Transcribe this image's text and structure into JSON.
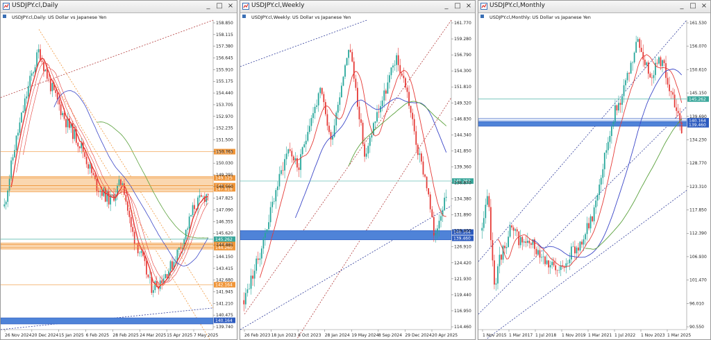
{
  "colors": {
    "up": "#26a69a",
    "down": "#e53935",
    "ma_red": "#e53935",
    "ma_blue": "#3b47c8",
    "ma_green": "#5aa13c",
    "zone_orange": "#fad7b0",
    "zone_orange_line": "#f0963a",
    "zone_blue": "#4f83d8",
    "trend_red": "#b23a3a",
    "trend_blue": "#2d3a9a",
    "price_line": "#4cb5a8"
  },
  "windows": [
    {
      "id": "daily",
      "title": "USDJPY.cl,Daily",
      "header": "USDJPY.cl,Daily: US Dollar vs Japanese Yen",
      "controls": [
        "_",
        "□",
        "×"
      ],
      "y_ticks": [
        "158.850",
        "158.115",
        "157.380",
        "156.645",
        "155.910",
        "155.175",
        "154.440",
        "153.705",
        "152.970",
        "152.235",
        "151.500",
        "150.765",
        "150.030",
        "149.295",
        "148.560",
        "147.825",
        "147.090",
        "146.355",
        "145.620",
        "144.885",
        "144.150",
        "143.415",
        "142.680",
        "141.945",
        "141.210",
        "140.475",
        "139.740"
      ],
      "x_labels": [
        "26 Nov 2024",
        "20 Dec 2024",
        "15 Jan 2025",
        "6 Feb 2025",
        "28 Feb 2025",
        "24 Mar 2025",
        "15 Apr 2025",
        "7 May 2025"
      ],
      "levels": [
        {
          "label": "151.115",
          "kind": "orange"
        },
        {
          "label": "149.125",
          "kind": "orange"
        },
        {
          "label": "148.235",
          "kind": "orange"
        },
        {
          "label": "147.818",
          "kind": "orange"
        },
        {
          "label": "145.262",
          "kind": "price"
        },
        {
          "label": "144.673",
          "kind": "orange"
        },
        {
          "label": "144.260",
          "kind": "orange"
        },
        {
          "label": "142.164",
          "kind": "orange"
        },
        {
          "label": "140.164",
          "kind": "blue"
        }
      ]
    },
    {
      "id": "weekly",
      "title": "USDJPY.cl,Weekly",
      "header": "USDJPY.cl,Weekly: US Dollar vs Japanese Yen",
      "controls": [
        "_",
        "□",
        "×"
      ],
      "y_ticks": [
        "161.770",
        "159.280",
        "156.790",
        "154.300",
        "151.810",
        "149.320",
        "146.830",
        "144.340",
        "141.850",
        "139.360",
        "136.870",
        "134.380",
        "131.890",
        "129.400",
        "126.910",
        "124.420",
        "121.930",
        "119.440",
        "116.950",
        "114.460"
      ],
      "x_labels": [
        "26 Feb 2023",
        "18 Jun 2023",
        "8 Oct 2023",
        "28 Jan 2024",
        "19 May 2024",
        "8 Sep 2024",
        "29 Dec 2024",
        "20 Apr 2025"
      ],
      "levels": [
        {
          "label": "145.262",
          "kind": "price"
        },
        {
          "label": "140.164",
          "kind": "blue"
        },
        {
          "label": "139.460",
          "kind": "blue"
        }
      ]
    },
    {
      "id": "monthly",
      "title": "USDJPY.cl,Monthly",
      "header": "USDJPY.cl,Monthly: US Dollar vs Japanese Yen",
      "controls": [
        "_",
        "□",
        "×"
      ],
      "y_ticks": [
        "161.530",
        "156.070",
        "150.610",
        "145.150",
        "139.690",
        "134.230",
        "128.770",
        "123.310",
        "117.850",
        "112.390",
        "106.930",
        "101.470",
        "96.010",
        "90.550"
      ],
      "x_labels": [
        "1 Nov 2015",
        "1 Mar 2017",
        "1 Jul 2018",
        "1 Nov 2019",
        "1 Mar 2021",
        "1 Jul 2022",
        "1 Nov 2023",
        "1 Mar 2025"
      ],
      "levels": [
        {
          "label": "145.262",
          "kind": "price"
        },
        {
          "label": "140.164",
          "kind": "blue"
        },
        {
          "label": "139.460",
          "kind": "blue"
        }
      ]
    }
  ]
}
